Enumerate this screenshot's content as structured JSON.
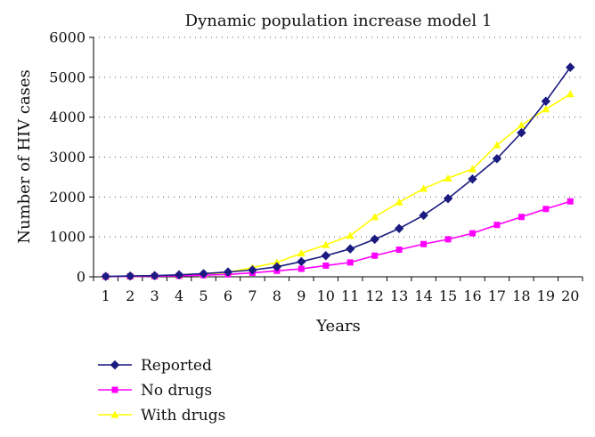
{
  "chart_data": {
    "type": "line",
    "title": "Dynamic population increase model 1",
    "xlabel": "Years",
    "ylabel": "Number of HIV cases",
    "categories": [
      "1",
      "2",
      "3",
      "4",
      "5",
      "6",
      "7",
      "8",
      "9",
      "10",
      "11",
      "12",
      "13",
      "14",
      "15",
      "16",
      "17",
      "18",
      "19",
      "20"
    ],
    "ylim": [
      0,
      6000
    ],
    "yticks": [
      "0",
      "1000",
      "2000",
      "3000",
      "4000",
      "5000",
      "6000"
    ],
    "grid": "horizontal dotted",
    "legend_position": "bottom-left",
    "series": [
      {
        "name": "Reported",
        "color": "#1a1a80",
        "marker": "diamond",
        "values": [
          10,
          20,
          30,
          50,
          80,
          120,
          170,
          250,
          380,
          530,
          700,
          940,
          1210,
          1540,
          1960,
          2450,
          2960,
          3610,
          4400,
          5250
        ]
      },
      {
        "name": "No drugs",
        "color": "#ff00ff",
        "marker": "square",
        "values": [
          5,
          10,
          15,
          25,
          40,
          60,
          100,
          150,
          200,
          280,
          360,
          530,
          680,
          820,
          940,
          1090,
          1300,
          1500,
          1700,
          1890
        ]
      },
      {
        "name": "With drugs",
        "color": "#ffff00",
        "marker": "triangle",
        "values": [
          5,
          10,
          20,
          35,
          60,
          110,
          230,
          360,
          590,
          800,
          1030,
          1500,
          1870,
          2210,
          2470,
          2700,
          3300,
          3800,
          4200,
          4580
        ]
      }
    ]
  }
}
